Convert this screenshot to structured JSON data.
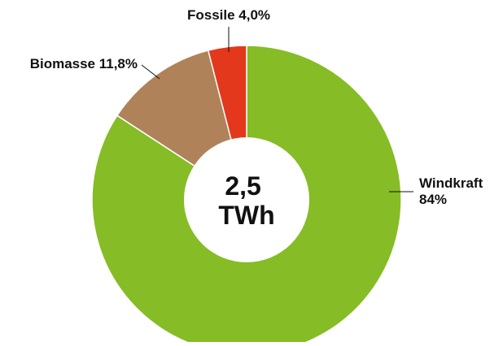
{
  "chart_data": {
    "type": "pie",
    "variant": "donut",
    "title": "",
    "center_label": [
      "2,5",
      "TWh"
    ],
    "slices": [
      {
        "name": "Windkraft",
        "value": 84.2,
        "label_lines": [
          "Windkraft",
          "84%"
        ],
        "color": "#86bc25"
      },
      {
        "name": "Biomasse",
        "value": 11.8,
        "label_lines": [
          "Biomasse 11,8%"
        ],
        "color": "#b0825a"
      },
      {
        "name": "Fossile",
        "value": 4.0,
        "label_lines": [
          "Fossile 4,0%"
        ],
        "color": "#e3381b"
      }
    ],
    "start": "top",
    "direction": "clockwise",
    "legend": "none"
  }
}
